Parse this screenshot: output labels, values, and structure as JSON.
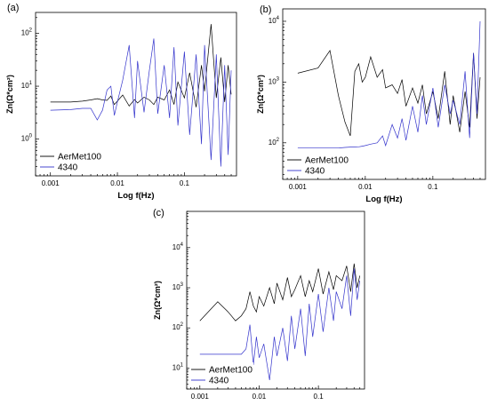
{
  "chart_data": [
    {
      "id": "a",
      "type": "line",
      "panel_label": "(a)",
      "xlabel": "Log f(Hz)",
      "ylabel": "Zn(Ω*cm²)",
      "xscale": "log",
      "yscale": "log",
      "xlim": [
        0.0006,
        0.6
      ],
      "ylim": [
        0.2,
        250
      ],
      "xticks": [
        {
          "value": 0.001,
          "label": "0.001"
        },
        {
          "value": 0.01,
          "label": "0.01"
        },
        {
          "value": 0.1,
          "label": "0.1"
        }
      ],
      "yticks": [
        {
          "value": 1,
          "base": "10",
          "exp": "0"
        },
        {
          "value": 10,
          "base": "10",
          "exp": "1"
        },
        {
          "value": 100,
          "base": "10",
          "exp": "2"
        }
      ],
      "legend_position": "bottom-left",
      "series": [
        {
          "name": "AerMet100",
          "color": "#000000",
          "x": [
            0.001,
            0.002,
            0.003,
            0.004,
            0.005,
            0.006,
            0.007,
            0.008,
            0.009,
            0.01,
            0.012,
            0.015,
            0.018,
            0.02,
            0.025,
            0.03,
            0.035,
            0.04,
            0.05,
            0.06,
            0.07,
            0.08,
            0.1,
            0.12,
            0.15,
            0.18,
            0.2,
            0.25,
            0.3,
            0.35,
            0.4,
            0.45,
            0.5
          ],
          "y": [
            5,
            5,
            5.2,
            5.5,
            5.8,
            5.5,
            5.4,
            6.5,
            4.5,
            5.2,
            6.8,
            4.2,
            5.6,
            4.8,
            6.2,
            5.5,
            4.5,
            6.2,
            5.5,
            8.5,
            4.5,
            12,
            6,
            18,
            4,
            25,
            8,
            150,
            6,
            35,
            5,
            25,
            7
          ]
        },
        {
          "name": "4340",
          "color": "#3333cc",
          "x": [
            0.001,
            0.002,
            0.003,
            0.004,
            0.005,
            0.006,
            0.007,
            0.008,
            0.009,
            0.01,
            0.012,
            0.015,
            0.018,
            0.02,
            0.025,
            0.03,
            0.035,
            0.04,
            0.05,
            0.06,
            0.07,
            0.08,
            0.1,
            0.12,
            0.15,
            0.18,
            0.2,
            0.25,
            0.3,
            0.35,
            0.4,
            0.45,
            0.5
          ],
          "y": [
            3.5,
            3.6,
            3.8,
            3.8,
            2.3,
            3.5,
            8.5,
            10,
            2.8,
            5,
            13,
            60,
            2.5,
            30,
            3.2,
            20,
            80,
            3,
            25,
            2.5,
            55,
            1.8,
            45,
            1.2,
            40,
            0.8,
            60,
            0.4,
            40,
            0.3,
            25,
            0.5,
            20
          ]
        }
      ]
    },
    {
      "id": "b",
      "type": "line",
      "panel_label": "(b)",
      "xlabel": "Log f(Hz)",
      "ylabel": "Zn(Ω*cm²)",
      "xscale": "log",
      "yscale": "log",
      "xlim": [
        0.0006,
        0.6
      ],
      "ylim": [
        25,
        16000
      ],
      "xticks": [
        {
          "value": 0.001,
          "label": "0.001"
        },
        {
          "value": 0.01,
          "label": "0.01"
        },
        {
          "value": 0.1,
          "label": "0.1"
        }
      ],
      "yticks": [
        {
          "value": 100,
          "base": "10",
          "exp": "2"
        },
        {
          "value": 1000,
          "base": "10",
          "exp": "3"
        },
        {
          "value": 10000,
          "base": "10",
          "exp": "4"
        }
      ],
      "legend_position": "bottom-left",
      "series": [
        {
          "name": "AerMet100",
          "color": "#000000",
          "x": [
            0.001,
            0.002,
            0.003,
            0.004,
            0.005,
            0.006,
            0.007,
            0.008,
            0.009,
            0.01,
            0.012,
            0.015,
            0.018,
            0.02,
            0.025,
            0.03,
            0.035,
            0.04,
            0.05,
            0.06,
            0.07,
            0.08,
            0.1,
            0.12,
            0.15,
            0.18,
            0.2,
            0.25,
            0.3,
            0.35,
            0.4,
            0.45,
            0.5
          ],
          "y": [
            1400,
            1700,
            3300,
            600,
            220,
            130,
            1500,
            2000,
            1000,
            1200,
            2600,
            1200,
            1600,
            800,
            900,
            650,
            1100,
            400,
            800,
            450,
            900,
            300,
            700,
            250,
            1500,
            200,
            600,
            150,
            700,
            180,
            3000,
            250,
            1200
          ]
        },
        {
          "name": "4340",
          "color": "#3333cc",
          "x": [
            0.001,
            0.002,
            0.003,
            0.004,
            0.005,
            0.006,
            0.007,
            0.008,
            0.009,
            0.01,
            0.012,
            0.015,
            0.018,
            0.02,
            0.025,
            0.03,
            0.035,
            0.04,
            0.05,
            0.06,
            0.07,
            0.08,
            0.1,
            0.12,
            0.15,
            0.18,
            0.2,
            0.25,
            0.3,
            0.35,
            0.4,
            0.45,
            0.5
          ],
          "y": [
            82,
            82,
            82,
            82,
            84,
            85,
            85,
            86,
            88,
            90,
            95,
            100,
            130,
            90,
            200,
            120,
            250,
            110,
            400,
            150,
            600,
            200,
            800,
            180,
            900,
            300,
            500,
            200,
            1500,
            120,
            3000,
            300,
            10000
          ]
        }
      ]
    },
    {
      "id": "c",
      "type": "line",
      "panel_label": "(c)",
      "xlabel": "Log f(Hz)",
      "ylabel": "Zn(Ω*cm²)",
      "xscale": "log",
      "yscale": "log",
      "xlim": [
        0.0006,
        0.6
      ],
      "ylim": [
        3,
        80000
      ],
      "xticks": [
        {
          "value": 0.001,
          "label": "0.001"
        },
        {
          "value": 0.01,
          "label": "0.01"
        },
        {
          "value": 0.1,
          "label": "0.1"
        }
      ],
      "yticks": [
        {
          "value": 10,
          "base": "10",
          "exp": "1"
        },
        {
          "value": 100,
          "base": "10",
          "exp": "2"
        },
        {
          "value": 1000,
          "base": "10",
          "exp": "3"
        },
        {
          "value": 10000,
          "base": "10",
          "exp": "4"
        }
      ],
      "legend_position": "bottom-left",
      "series": [
        {
          "name": "AerMet100",
          "color": "#000000",
          "x": [
            0.001,
            0.002,
            0.003,
            0.004,
            0.005,
            0.006,
            0.007,
            0.008,
            0.009,
            0.01,
            0.012,
            0.015,
            0.018,
            0.02,
            0.025,
            0.03,
            0.035,
            0.04,
            0.05,
            0.06,
            0.07,
            0.08,
            0.1,
            0.12,
            0.15,
            0.18,
            0.2,
            0.25,
            0.3,
            0.35,
            0.4,
            0.45,
            0.5
          ],
          "y": [
            150,
            450,
            250,
            150,
            200,
            300,
            800,
            350,
            250,
            600,
            350,
            1000,
            400,
            1300,
            500,
            1800,
            600,
            900,
            2000,
            600,
            1500,
            800,
            3000,
            700,
            2500,
            900,
            2000,
            1500,
            3500,
            800,
            4000,
            1000,
            2000
          ]
        },
        {
          "name": "4340",
          "color": "#3333cc",
          "x": [
            0.001,
            0.002,
            0.003,
            0.004,
            0.005,
            0.006,
            0.007,
            0.008,
            0.009,
            0.01,
            0.012,
            0.015,
            0.018,
            0.02,
            0.025,
            0.03,
            0.035,
            0.04,
            0.05,
            0.06,
            0.07,
            0.08,
            0.1,
            0.12,
            0.15,
            0.18,
            0.2,
            0.25,
            0.3,
            0.35,
            0.4,
            0.45,
            0.5
          ],
          "y": [
            22,
            22,
            22,
            22,
            22,
            30,
            120,
            12,
            60,
            18,
            40,
            5,
            60,
            20,
            100,
            15,
            200,
            30,
            300,
            20,
            400,
            60,
            700,
            80,
            1000,
            150,
            800,
            300,
            2000,
            200,
            3000,
            500,
            1500
          ]
        }
      ]
    }
  ]
}
